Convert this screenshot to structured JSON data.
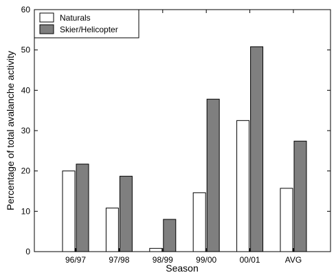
{
  "chart_data": {
    "type": "bar",
    "xlabel": "Season",
    "ylabel": "Percentage of total avalanche activity",
    "categories": [
      "96/97",
      "97/98",
      "98/99",
      "99/00",
      "00/01",
      "AVG"
    ],
    "series": [
      {
        "name": "Naturals",
        "values": [
          20.0,
          10.8,
          0.8,
          14.6,
          32.5,
          15.7
        ],
        "color": "#ffffff"
      },
      {
        "name": "Skier/Helicopter",
        "values": [
          21.7,
          18.7,
          8.0,
          37.8,
          50.8,
          27.4
        ],
        "color": "#7f7f7f"
      }
    ],
    "ylim": [
      0,
      60
    ],
    "yticks": [
      "0",
      "10",
      "20",
      "30",
      "40",
      "50",
      "60"
    ],
    "legend_position": "top-left",
    "grid": false
  }
}
